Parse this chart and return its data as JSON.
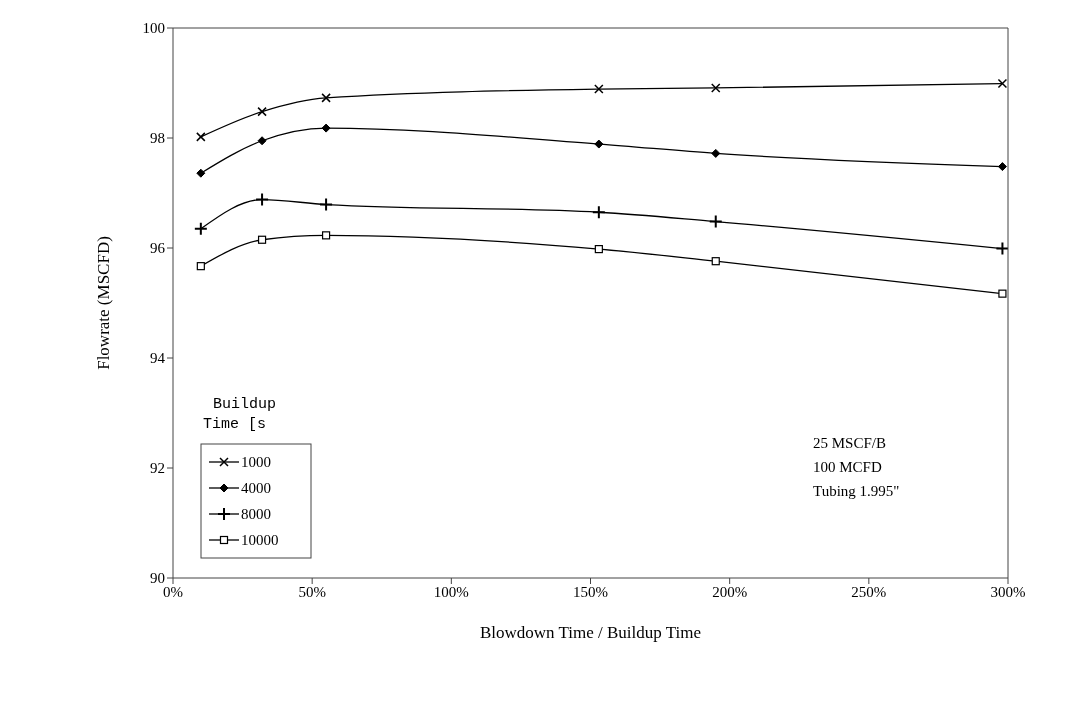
{
  "chart_data": {
    "type": "line",
    "xlabel": "Blowdown Time / Buildup Time",
    "ylabel": "Flowrate (MSCFD)",
    "legend_title": "Buildup Time [s",
    "legend": "bottom left",
    "x": [
      10,
      32,
      55,
      153,
      195,
      298
    ],
    "xlim": [
      0,
      300
    ],
    "xticks": [
      {
        "value": 0,
        "label": "0%"
      },
      {
        "value": 50,
        "label": "50%"
      },
      {
        "value": 100,
        "label": "100%"
      },
      {
        "value": 150,
        "label": "150%"
      },
      {
        "value": 200,
        "label": "200%"
      },
      {
        "value": 250,
        "label": "250%"
      },
      {
        "value": 300,
        "label": "300%"
      }
    ],
    "ylim": [
      90,
      100
    ],
    "yticks": [
      90,
      92,
      94,
      96,
      98,
      100
    ],
    "series": [
      {
        "name": "1000",
        "color": "#000000",
        "marker": "cross",
        "values": [
          98.02,
          98.48,
          98.73,
          98.89,
          98.91,
          98.99
        ]
      },
      {
        "name": "4000",
        "color": "#000000",
        "marker": "diamond",
        "values": [
          97.36,
          97.95,
          98.18,
          97.89,
          97.72,
          97.48
        ]
      },
      {
        "name": "8000",
        "color": "#000000",
        "marker": "plus",
        "values": [
          96.35,
          96.88,
          96.79,
          96.65,
          96.48,
          95.99
        ]
      },
      {
        "name": "10000",
        "color": "#000000",
        "marker": "square",
        "values": [
          95.67,
          96.15,
          96.23,
          95.98,
          95.76,
          95.17
        ]
      }
    ],
    "annotations": [
      "25 MSCF/B",
      "100 MCFD",
      "Tubing 1.995\""
    ]
  }
}
